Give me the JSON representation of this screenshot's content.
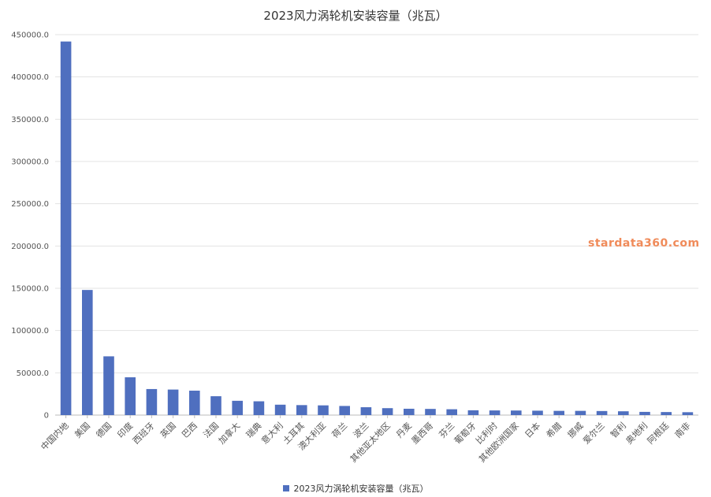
{
  "chart_data": {
    "type": "bar",
    "title": "2023风力涡轮机安装容量（兆瓦）",
    "categories": [
      "中国内地",
      "美国",
      "德国",
      "印度",
      "西班牙",
      "英国",
      "巴西",
      "法国",
      "加拿大",
      "瑞典",
      "意大利",
      "土耳其",
      "澳大利亚",
      "荷兰",
      "波兰",
      "其他亚太地区",
      "丹麦",
      "墨西哥",
      "芬兰",
      "葡萄牙",
      "比利时",
      "其他欧洲国家",
      "日本",
      "希腊",
      "挪威",
      "爱尔兰",
      "智利",
      "奥地利",
      "阿根廷",
      "南非"
    ],
    "series": [
      {
        "name": "2023风力涡轮机安装容量（兆瓦）",
        "values": [
          441900,
          148000,
          69500,
          44700,
          30800,
          30200,
          28900,
          22300,
          16900,
          16300,
          12300,
          11800,
          11500,
          10800,
          9300,
          8200,
          7500,
          7300,
          6900,
          5700,
          5500,
          5400,
          5200,
          5000,
          5000,
          4800,
          4500,
          3800,
          3600,
          3400
        ]
      }
    ],
    "y_ticks": [
      "0",
      "50000.0",
      "100000.0",
      "150000.0",
      "200000.0",
      "250000.0",
      "300000.0",
      "350000.0",
      "400000.0",
      "450000.0"
    ],
    "ylim": [
      0,
      450000
    ],
    "grid": true,
    "legend": "bottom-center",
    "bar_color": "#4f6fbf",
    "watermark": "stardata360.com"
  }
}
